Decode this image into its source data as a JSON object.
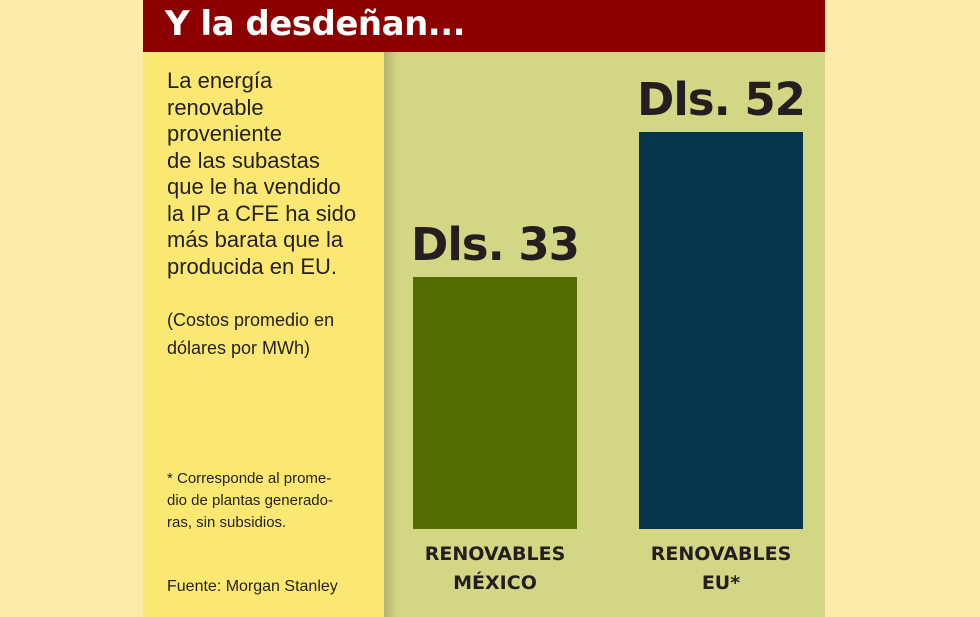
{
  "header": {
    "title": "Y la desdeñan..."
  },
  "left_panel": {
    "intro": "La energía\nrenovable\nproveniente\nde las subastas\nque le ha vendido\nla IP a CFE ha sido\nmás barata que la\nproducida en EU.",
    "units_note": "(Costos promedio en\ndólares por MWh)",
    "footnote": "* Corresponde al prome-\ndio de plantas generado-\nras, sin subsidios.",
    "source": "Fuente: Morgan Stanley"
  },
  "colors": {
    "header_bg": "#8c0000",
    "left_panel_bg": "#fbe873",
    "chart_panel_bg": "#d3d684",
    "page_bg": "#fcebab"
  },
  "chart_data": {
    "type": "bar",
    "categories": [
      "RENOVABLES\nMÉXICO",
      "RENOVABLES\nEU*"
    ],
    "values": [
      33,
      52
    ],
    "value_labels": [
      "Dls. 33",
      "Dls. 52"
    ],
    "colors": [
      "#536b00",
      "#06344a"
    ],
    "title": "",
    "xlabel": "",
    "ylabel": "",
    "grid": false
  }
}
